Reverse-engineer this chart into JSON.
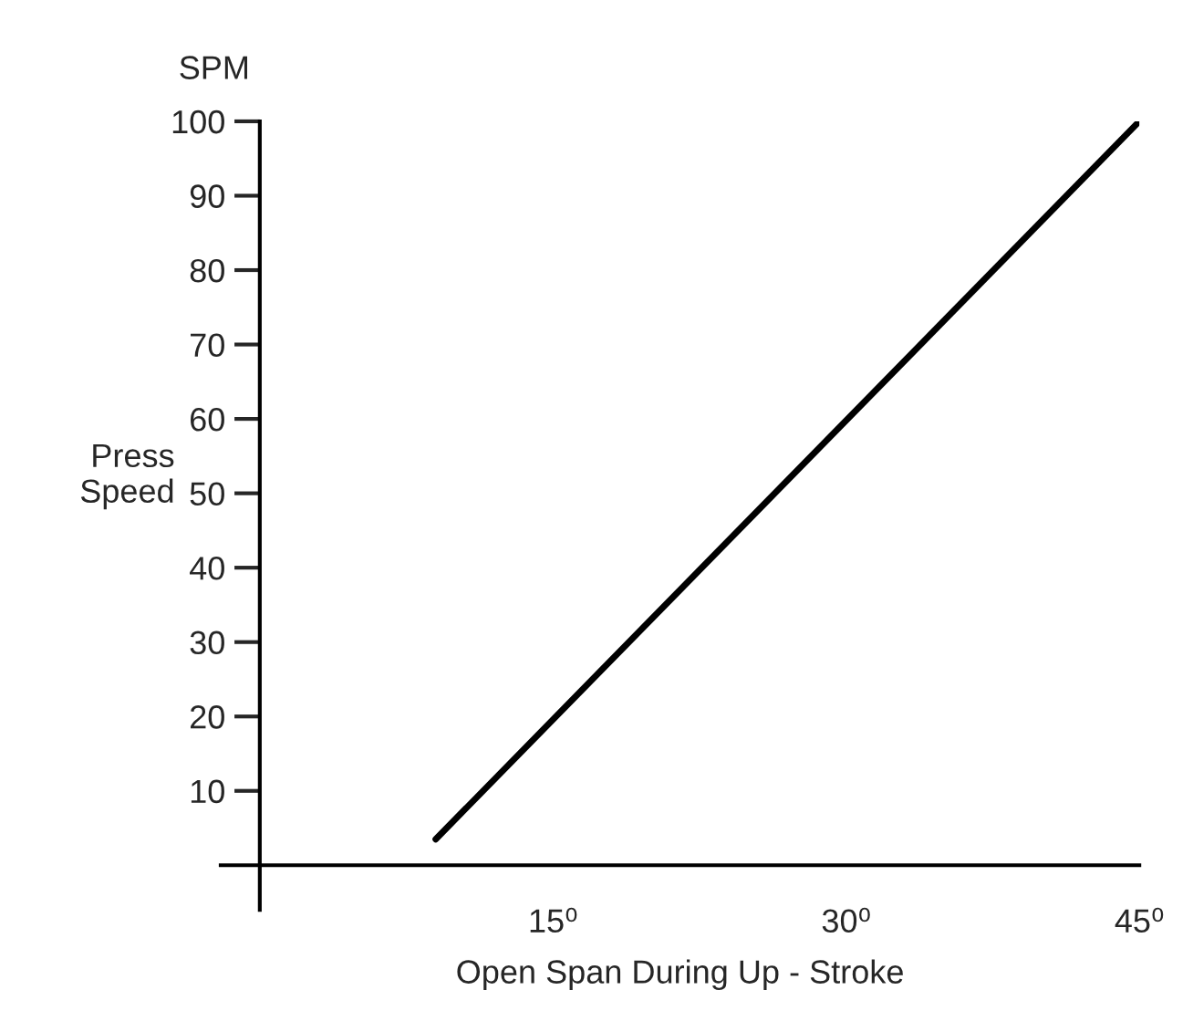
{
  "chart_data": {
    "type": "line",
    "xlabel": "Open Span During Up - Stroke",
    "ylabel": "Press\nSpeed",
    "annotations": [
      "SPM"
    ],
    "x": [
      9,
      45
    ],
    "series": [
      {
        "color": "#000000",
        "values": [
          3.5,
          100
        ]
      }
    ],
    "xlim": [
      -2,
      45
    ],
    "ylim": [
      -6,
      100
    ],
    "xticks": [
      {
        "value": 15,
        "label": "15⁰"
      },
      {
        "value": 30,
        "label": "30⁰"
      },
      {
        "value": 45,
        "label": "45⁰"
      }
    ],
    "yticks": [
      10,
      20,
      30,
      40,
      50,
      60,
      70,
      80,
      90,
      100
    ],
    "grid": false,
    "legend": false,
    "marker": "none",
    "line_style": "solid"
  }
}
